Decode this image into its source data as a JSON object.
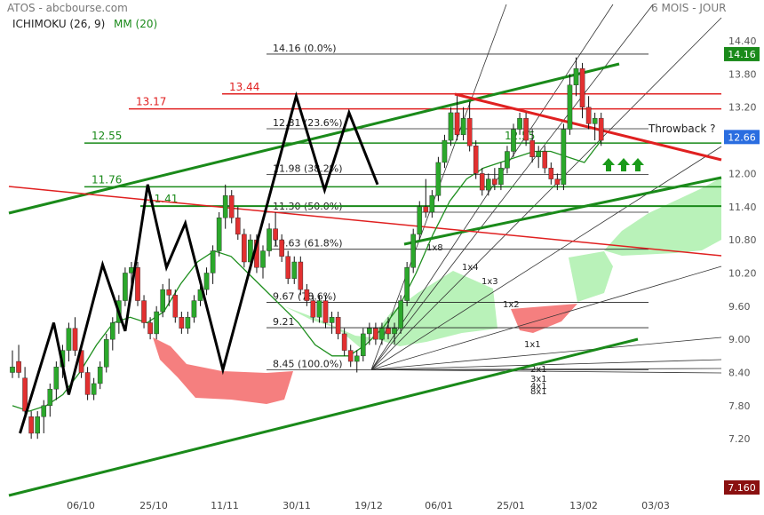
{
  "header": {
    "title": "ATOS - abcbourse.com",
    "period": "6 MOIS - JOUR",
    "indicator1": "ICHIMOKU (26, 9)",
    "indicator2": "MM (20)"
  },
  "colors": {
    "up": "#2ba82b",
    "down": "#e23030",
    "cloud_green": "#b9f2b9",
    "cloud_red": "#f57f7f",
    "ma": "#1f8f1f",
    "trend_green": "#1a8a1a",
    "trend_red": "#e02020",
    "price_badge": "#2a6de0",
    "last_badge": "#8a1010"
  },
  "chart_data": {
    "type": "candlestick",
    "y_ticks": [
      "14.40",
      "13.80",
      "13.20",
      "12.60",
      "12.00",
      "11.40",
      "10.80",
      "10.20",
      "9.60",
      "9.00",
      "8.40",
      "7.80",
      "7.20"
    ],
    "y_range": [
      7.2,
      14.4
    ],
    "x_ticks": [
      "06/10",
      "25/10",
      "11/11",
      "30/11",
      "19/12",
      "06/01",
      "25/01",
      "13/02",
      "03/03"
    ],
    "candles": [
      [
        8.4,
        8.8,
        8.3,
        8.5
      ],
      [
        8.6,
        8.9,
        8.3,
        8.4
      ],
      [
        8.3,
        8.5,
        7.6,
        7.7
      ],
      [
        7.6,
        7.7,
        7.2,
        7.3
      ],
      [
        7.3,
        7.7,
        7.2,
        7.6
      ],
      [
        7.6,
        7.9,
        7.3,
        7.8
      ],
      [
        7.8,
        8.2,
        7.6,
        8.1
      ],
      [
        8.1,
        8.6,
        7.9,
        8.5
      ],
      [
        8.5,
        8.9,
        8.3,
        8.8
      ],
      [
        8.8,
        9.3,
        8.6,
        9.2
      ],
      [
        9.2,
        9.4,
        8.7,
        8.8
      ],
      [
        8.8,
        8.9,
        8.3,
        8.4
      ],
      [
        8.4,
        8.5,
        7.9,
        8.0
      ],
      [
        8.0,
        8.3,
        7.9,
        8.2
      ],
      [
        8.2,
        8.6,
        8.1,
        8.5
      ],
      [
        8.5,
        9.1,
        8.4,
        9.0
      ],
      [
        9.0,
        9.4,
        8.8,
        9.3
      ],
      [
        9.3,
        9.8,
        9.1,
        9.7
      ],
      [
        9.7,
        10.3,
        9.6,
        10.2
      ],
      [
        10.2,
        10.4,
        9.9,
        10.3
      ],
      [
        10.3,
        10.4,
        9.6,
        9.7
      ],
      [
        9.7,
        9.8,
        9.2,
        9.3
      ],
      [
        9.3,
        9.4,
        9.0,
        9.1
      ],
      [
        9.1,
        9.6,
        9.0,
        9.5
      ],
      [
        9.5,
        10.0,
        9.4,
        9.9
      ],
      [
        9.9,
        10.1,
        9.6,
        9.8
      ],
      [
        9.8,
        9.9,
        9.3,
        9.4
      ],
      [
        9.4,
        9.5,
        9.1,
        9.2
      ],
      [
        9.2,
        9.5,
        9.1,
        9.4
      ],
      [
        9.4,
        9.8,
        9.3,
        9.7
      ],
      [
        9.7,
        10.0,
        9.6,
        9.9
      ],
      [
        9.9,
        10.3,
        9.8,
        10.2
      ],
      [
        10.2,
        10.7,
        10.0,
        10.6
      ],
      [
        10.6,
        11.3,
        10.5,
        11.2
      ],
      [
        11.2,
        11.8,
        11.0,
        11.6
      ],
      [
        11.6,
        11.7,
        11.1,
        11.2
      ],
      [
        11.2,
        11.4,
        10.8,
        10.9
      ],
      [
        10.9,
        11.0,
        10.3,
        10.4
      ],
      [
        10.4,
        10.9,
        10.3,
        10.8
      ],
      [
        10.8,
        10.9,
        10.2,
        10.3
      ],
      [
        10.3,
        10.7,
        10.1,
        10.6
      ],
      [
        10.6,
        11.1,
        10.5,
        11.0
      ],
      [
        11.0,
        11.3,
        10.7,
        10.8
      ],
      [
        10.8,
        10.9,
        10.4,
        10.5
      ],
      [
        10.5,
        10.6,
        10.0,
        10.1
      ],
      [
        10.1,
        10.5,
        10.0,
        10.4
      ],
      [
        10.4,
        10.5,
        9.8,
        9.9
      ],
      [
        9.9,
        10.0,
        9.6,
        9.7
      ],
      [
        9.7,
        9.8,
        9.3,
        9.4
      ],
      [
        9.4,
        9.8,
        9.3,
        9.7
      ],
      [
        9.7,
        9.8,
        9.2,
        9.3
      ],
      [
        9.3,
        9.5,
        9.1,
        9.4
      ],
      [
        9.4,
        9.5,
        9.0,
        9.1
      ],
      [
        9.1,
        9.2,
        8.7,
        8.8
      ],
      [
        8.8,
        8.9,
        8.5,
        8.6
      ],
      [
        8.6,
        8.8,
        8.4,
        8.7
      ],
      [
        8.7,
        9.2,
        8.6,
        9.1
      ],
      [
        9.1,
        9.3,
        8.9,
        9.2
      ],
      [
        9.2,
        9.3,
        8.9,
        9.0
      ],
      [
        9.0,
        9.3,
        8.9,
        9.2
      ],
      [
        9.2,
        9.4,
        9.0,
        9.1
      ],
      [
        9.1,
        9.3,
        8.9,
        9.2
      ],
      [
        9.2,
        9.8,
        9.1,
        9.7
      ],
      [
        9.7,
        10.4,
        9.6,
        10.3
      ],
      [
        10.3,
        11.0,
        10.2,
        10.9
      ],
      [
        10.9,
        11.5,
        10.8,
        11.4
      ],
      [
        11.4,
        11.9,
        11.2,
        11.3
      ],
      [
        11.3,
        11.7,
        11.2,
        11.6
      ],
      [
        11.6,
        12.3,
        11.5,
        12.2
      ],
      [
        12.2,
        12.7,
        12.1,
        12.6
      ],
      [
        12.6,
        13.2,
        12.5,
        13.1
      ],
      [
        13.1,
        13.4,
        12.6,
        12.7
      ],
      [
        12.7,
        13.2,
        12.6,
        13.0
      ],
      [
        13.0,
        13.3,
        12.4,
        12.5
      ],
      [
        12.5,
        12.6,
        11.9,
        12.0
      ],
      [
        12.0,
        12.1,
        11.6,
        11.7
      ],
      [
        11.7,
        12.0,
        11.6,
        11.9
      ],
      [
        11.9,
        12.1,
        11.7,
        11.8
      ],
      [
        11.8,
        12.2,
        11.7,
        12.1
      ],
      [
        12.1,
        12.5,
        12.0,
        12.4
      ],
      [
        12.4,
        12.9,
        12.3,
        12.8
      ],
      [
        12.8,
        13.1,
        12.7,
        13.0
      ],
      [
        13.0,
        13.1,
        12.5,
        12.6
      ],
      [
        12.6,
        12.8,
        12.2,
        12.3
      ],
      [
        12.3,
        12.5,
        12.1,
        12.4
      ],
      [
        12.4,
        12.5,
        12.0,
        12.1
      ],
      [
        12.1,
        12.2,
        11.8,
        11.9
      ],
      [
        11.9,
        12.0,
        11.7,
        11.8
      ],
      [
        11.8,
        12.9,
        11.7,
        12.8
      ],
      [
        12.8,
        13.8,
        12.7,
        13.6
      ],
      [
        13.6,
        14.1,
        13.4,
        13.9
      ],
      [
        13.9,
        14.0,
        13.0,
        13.2
      ],
      [
        13.2,
        13.4,
        12.8,
        12.9
      ],
      [
        12.9,
        13.1,
        12.6,
        13.0
      ],
      [
        13.0,
        13.1,
        12.5,
        12.6
      ]
    ],
    "moving_average_20": [
      7.8,
      7.7,
      7.8,
      8.0,
      8.4,
      8.9,
      9.3,
      9.4,
      9.3,
      9.5,
      10.0,
      10.4,
      10.6,
      10.5,
      10.2,
      9.9,
      9.6,
      9.3,
      8.9,
      8.7,
      8.7,
      8.9,
      9.2,
      9.6,
      10.2,
      10.9,
      11.5,
      11.9,
      12.1,
      12.2,
      12.3,
      12.4,
      12.4,
      12.3,
      12.2,
      12.6
    ],
    "fibonacci": [
      {
        "value": 14.16,
        "label": "14.16  (0.0%)"
      },
      {
        "value": 12.81,
        "label": "12.81  (23.6%)"
      },
      {
        "value": 11.98,
        "label": "11.98  (38.2%)"
      },
      {
        "value": 11.3,
        "label": "11.30  (50.0%)"
      },
      {
        "value": 10.63,
        "label": "10.63  (61.8%)"
      },
      {
        "value": 9.67,
        "label": "9.67  (78.6%)"
      },
      {
        "value": 9.21,
        "label": "9.21"
      },
      {
        "value": 8.45,
        "label": "8.45  (100.0%)"
      }
    ],
    "level_labels": [
      {
        "value": 13.44,
        "label": "13.44",
        "color": "red"
      },
      {
        "value": 13.17,
        "label": "13.17",
        "color": "red"
      },
      {
        "value": 12.55,
        "label": "12.55",
        "color": "green"
      },
      {
        "value": 11.76,
        "label": "11.76",
        "color": "green"
      },
      {
        "value": 11.41,
        "label": "11.41",
        "color": "green"
      }
    ],
    "inline_label": "12.55",
    "gann_labels": [
      "1x8",
      "1x4",
      "1x3",
      "1x2",
      "1x1",
      "2x1",
      "3x1",
      "4x1",
      "8x1"
    ],
    "annotation": "Throwback ?",
    "badges": {
      "high": "14.16",
      "current": "12.66",
      "low": "7.160"
    }
  }
}
